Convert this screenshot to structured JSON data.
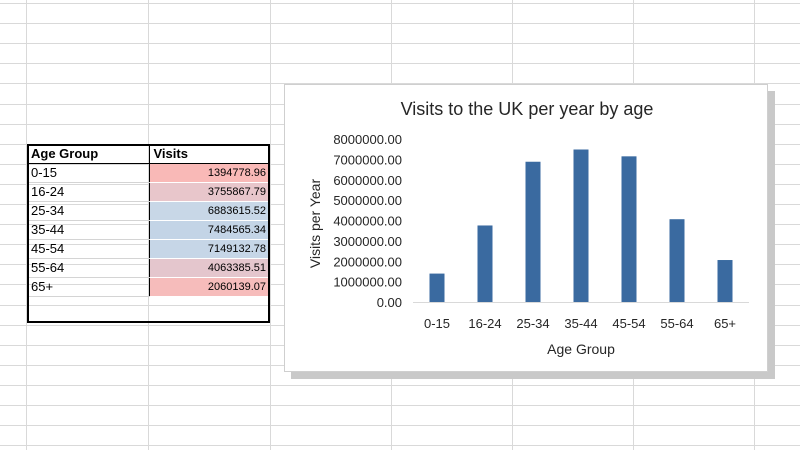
{
  "sheet": {
    "grid_color": "#d9d9d9",
    "table": {
      "headers": [
        "Age Group",
        "Visits"
      ],
      "rows": [
        {
          "group": "0-15",
          "visits": "1394778.96",
          "fill": "#f9b9b7"
        },
        {
          "group": "16-24",
          "visits": "3755867.79",
          "fill": "#e8c6cb"
        },
        {
          "group": "25-34",
          "visits": "6883615.52",
          "fill": "#c8d7e7"
        },
        {
          "group": "35-44",
          "visits": "7484565.34",
          "fill": "#c3d4e6"
        },
        {
          "group": "45-54",
          "visits": "7149132.78",
          "fill": "#c6d6e7"
        },
        {
          "group": "55-64",
          "visits": "4063385.51",
          "fill": "#e4c6cd"
        },
        {
          "group": "65+",
          "visits": "2060139.07",
          "fill": "#f6bcbb"
        }
      ]
    }
  },
  "chart_data": {
    "type": "bar",
    "title": "Visits to the UK per year by age",
    "xlabel": "Age Group",
    "ylabel": "Visits per Year",
    "categories": [
      "0-15",
      "16-24",
      "25-34",
      "35-44",
      "45-54",
      "55-64",
      "65+"
    ],
    "values": [
      1394778.96,
      3755867.79,
      6883615.52,
      7484565.34,
      7149132.78,
      4063385.51,
      2060139.07
    ],
    "ylim": [
      0,
      8000000
    ],
    "yticks": [
      "0.00",
      "1000000.00",
      "2000000.00",
      "3000000.00",
      "4000000.00",
      "5000000.00",
      "6000000.00",
      "7000000.00",
      "8000000.00"
    ],
    "bar_color": "#3a6aa0",
    "grid": false,
    "legend": "none"
  }
}
